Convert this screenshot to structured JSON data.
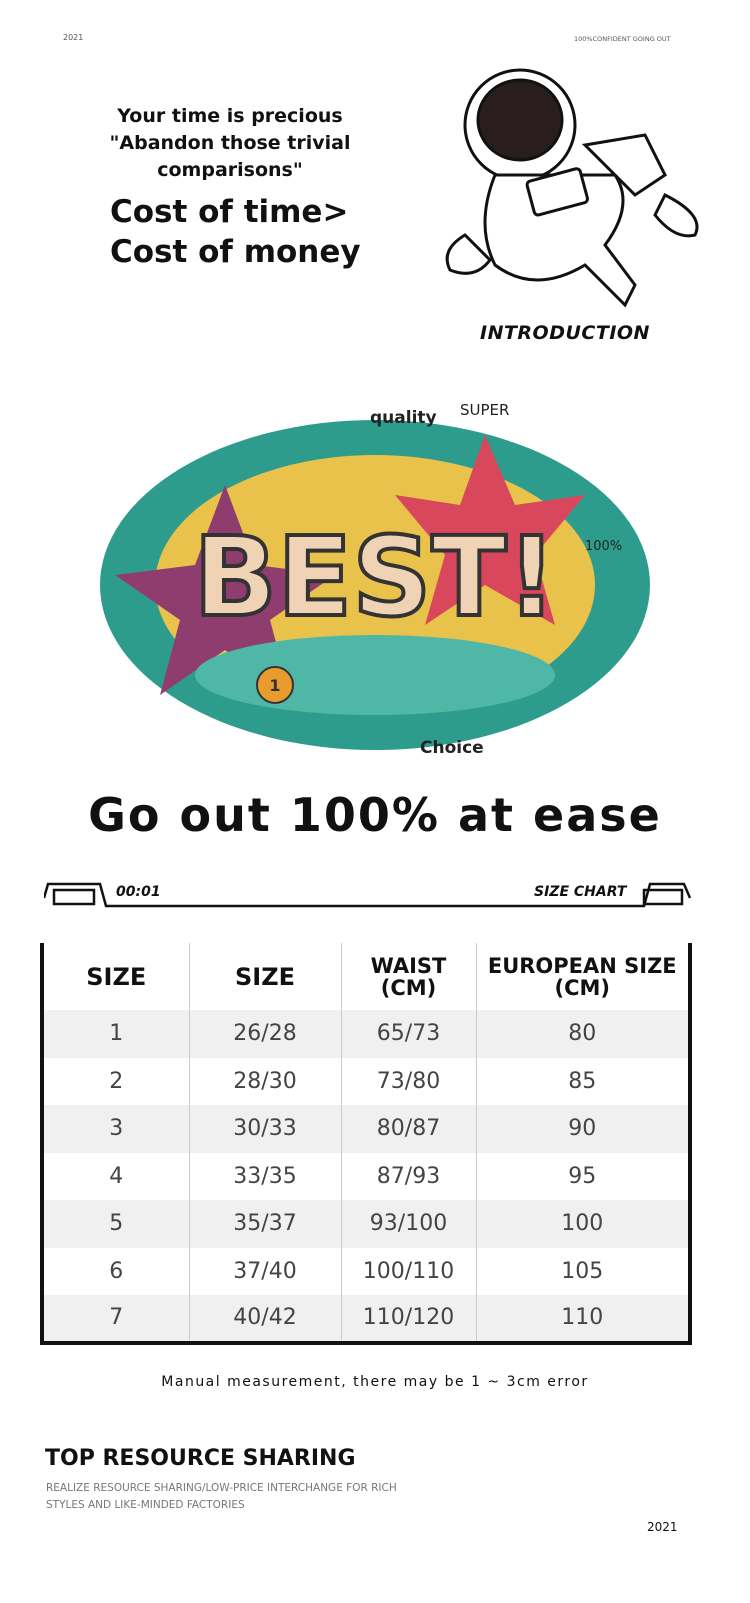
{
  "header": {
    "year": "2021",
    "tagline": "100%CONFIDENT GOING OUT"
  },
  "intro": {
    "line1": "Your time is precious",
    "line2": "\"Abandon those trivial comparisons\"",
    "cost1": "Cost of time>",
    "cost2": "Cost of money",
    "label": "INTRODUCTION"
  },
  "doodle": {
    "words": [
      "quality",
      "SUPER",
      "BEST!",
      "100%",
      "Choice",
      "1"
    ]
  },
  "slogan": "Go out 100% at ease",
  "chart_bar": {
    "left": "00:01",
    "right": "SIZE CHART"
  },
  "size_table": {
    "headers": [
      [
        "SIZE"
      ],
      [
        "SIZE"
      ],
      [
        "WAIST",
        "(CM)"
      ],
      [
        "EUROPEAN SIZE",
        "(CM)"
      ]
    ],
    "rows": [
      [
        "1",
        "26/28",
        "65/73",
        "80"
      ],
      [
        "2",
        "28/30",
        "73/80",
        "85"
      ],
      [
        "3",
        "30/33",
        "80/87",
        "90"
      ],
      [
        "4",
        "33/35",
        "87/93",
        "95"
      ],
      [
        "5",
        "35/37",
        "93/100",
        "100"
      ],
      [
        "6",
        "37/40",
        "100/110",
        "105"
      ],
      [
        "7",
        "40/42",
        "110/120",
        "110"
      ]
    ]
  },
  "note": "Manual measurement, there may be 1 ~ 3cm error",
  "footer": {
    "title": "TOP RESOURCE SHARING",
    "sub1": "REALIZE RESOURCE SHARING/LOW-PRICE INTERCHANGE FOR RICH",
    "sub2": "STYLES AND LIKE-MINDED FACTORIES",
    "year": "2021"
  }
}
